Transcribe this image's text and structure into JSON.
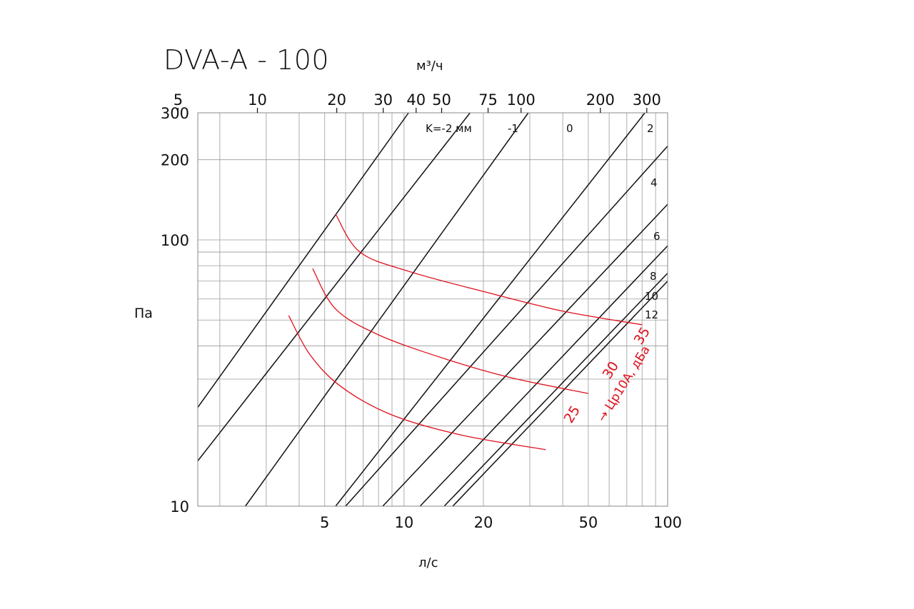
{
  "title": "DVA-A - 100",
  "colors": {
    "grid": "#9a9a9a",
    "k_lines": "#111111",
    "red_curves": "#e0101c",
    "text": "#111111"
  },
  "chart_data": {
    "type": "line",
    "title": "DVA-A - 100",
    "xlabel": "л/с",
    "x2label": "м³/ч",
    "ylabel": "Па",
    "xscale": "log",
    "yscale": "log",
    "xlim": [
      1.65,
      100
    ],
    "ylim": [
      10,
      300
    ],
    "x_ticks": [
      "5",
      "10",
      "20",
      "50",
      "100"
    ],
    "x2_ticks": [
      "5",
      "10",
      "20",
      "30",
      "40",
      "50",
      "75",
      "100",
      "200",
      "300"
    ],
    "y_ticks": [
      "10",
      "100",
      "200",
      "300"
    ],
    "grid": true,
    "k_lines": [
      {
        "label": "K=-2 мм",
        "points": [
          [
            1.65,
            23.5
          ],
          [
            10.4,
            300
          ]
        ]
      },
      {
        "label": "-1",
        "points": [
          [
            1.65,
            14.8
          ],
          [
            17.8,
            300
          ]
        ]
      },
      {
        "label": "0",
        "points": [
          [
            2.5,
            10
          ],
          [
            29.6,
            300
          ]
        ]
      },
      {
        "label": "2",
        "points": [
          [
            5.5,
            10
          ],
          [
            82,
            300
          ]
        ]
      },
      {
        "label": "4",
        "points": [
          [
            6.0,
            10
          ],
          [
            100,
            225
          ]
        ]
      },
      {
        "label": "6",
        "points": [
          [
            8.3,
            10
          ],
          [
            100,
            136
          ]
        ]
      },
      {
        "label": "8",
        "points": [
          [
            11.5,
            10
          ],
          [
            100,
            95
          ]
        ]
      },
      {
        "label": "10",
        "points": [
          [
            14.2,
            10
          ],
          [
            100,
            75
          ]
        ]
      },
      {
        "label": "12",
        "points": [
          [
            15.3,
            10
          ],
          [
            100,
            70
          ]
        ]
      }
    ],
    "series": [
      {
        "name": "25",
        "points": [
          [
            3.65,
            52
          ],
          [
            4.4,
            37
          ],
          [
            5.8,
            28
          ],
          [
            9.0,
            22
          ],
          [
            16.5,
            18.5
          ],
          [
            34.5,
            16.3
          ]
        ]
      },
      {
        "name": "30",
        "points": [
          [
            4.5,
            78
          ],
          [
            5.5,
            55
          ],
          [
            8.0,
            44
          ],
          [
            14.0,
            36
          ],
          [
            25.0,
            30.5
          ],
          [
            50.0,
            26.5
          ]
        ]
      },
      {
        "name": "35",
        "points": [
          [
            5.5,
            125
          ],
          [
            6.8,
            90
          ],
          [
            10.5,
            76
          ],
          [
            20.0,
            64
          ],
          [
            40.0,
            54
          ],
          [
            80.0,
            48
          ]
        ]
      }
    ],
    "annotations": [
      "→ Цр10А, дБа"
    ]
  }
}
